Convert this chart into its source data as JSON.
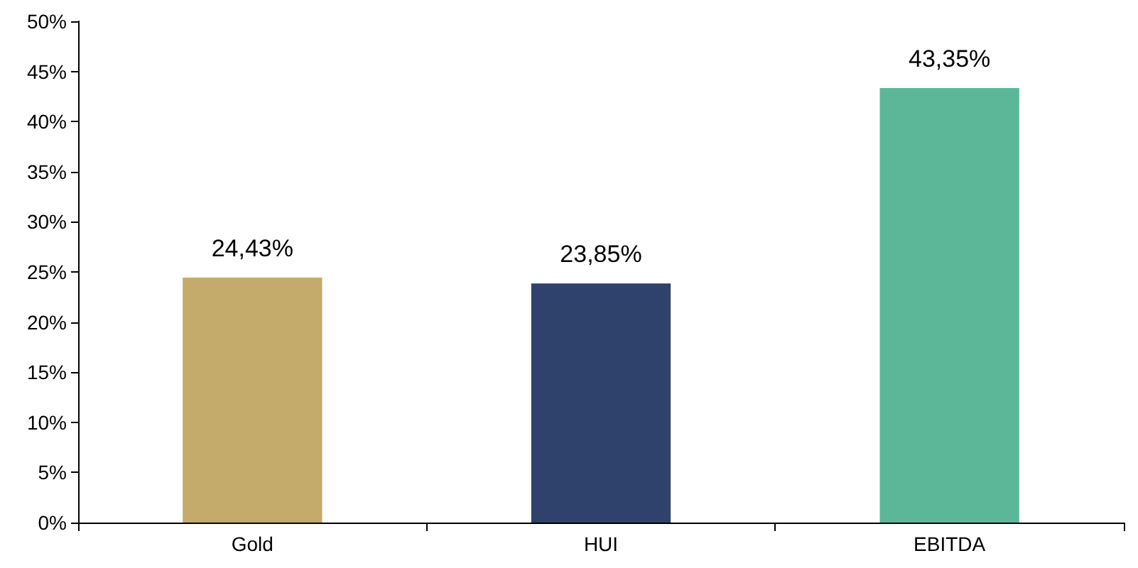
{
  "chart_data": {
    "type": "bar",
    "categories": [
      "Gold",
      "HUI",
      "EBITDA"
    ],
    "values": [
      24.43,
      23.85,
      43.35
    ],
    "colors": [
      "#c4aa6b",
      "#2e426b",
      "#5bb797"
    ],
    "value_labels": [
      "24,43%",
      "23,85%",
      "43,35%"
    ],
    "ylim": [
      0,
      50
    ],
    "yticks": [
      {
        "value": 0,
        "label": "0%"
      },
      {
        "value": 5,
        "label": "5%"
      },
      {
        "value": 10,
        "label": "10%"
      },
      {
        "value": 15,
        "label": "15%"
      },
      {
        "value": 20,
        "label": "20%"
      },
      {
        "value": 25,
        "label": "25%"
      },
      {
        "value": 30,
        "label": "30%"
      },
      {
        "value": 35,
        "label": "35%"
      },
      {
        "value": 40,
        "label": "40%"
      },
      {
        "value": 45,
        "label": "45%"
      },
      {
        "value": 50,
        "label": "50%"
      }
    ],
    "grid": false
  }
}
